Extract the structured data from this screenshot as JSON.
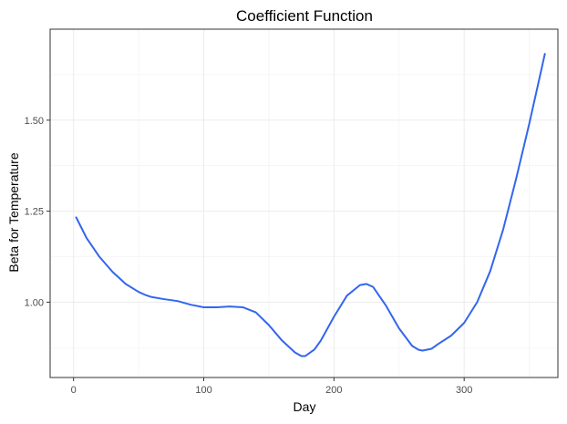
{
  "chart_data": {
    "type": "line",
    "title": "Coefficient Function",
    "xlabel": "Day",
    "ylabel": "Beta for Temperature",
    "xlim": [
      -18,
      372
    ],
    "ylim": [
      0.793,
      1.75
    ],
    "x_ticks": [
      {
        "value": 0,
        "label": "0"
      },
      {
        "value": 100,
        "label": "100"
      },
      {
        "value": 200,
        "label": "200"
      },
      {
        "value": 300,
        "label": "300"
      }
    ],
    "y_ticks": [
      {
        "value": 1.0,
        "label": "1.00"
      },
      {
        "value": 1.25,
        "label": "1.25"
      },
      {
        "value": 1.5,
        "label": "1.50"
      }
    ],
    "x_minor": [
      50,
      150,
      250,
      350
    ],
    "y_minor": [
      0.875,
      1.125,
      1.375,
      1.625
    ],
    "grid": true,
    "legend": "none",
    "line_color": "#3366ee",
    "series": [
      {
        "x": [
          2,
          10,
          20,
          30,
          40,
          50,
          55,
          60,
          70,
          80,
          90,
          100,
          110,
          120,
          130,
          140,
          150,
          160,
          170,
          175,
          178,
          185,
          190,
          200,
          210,
          220,
          225,
          230,
          240,
          250,
          260,
          265,
          268,
          275,
          280,
          290,
          300,
          310,
          320,
          330,
          340,
          350,
          355,
          360,
          362
        ],
        "y": [
          1.233,
          1.176,
          1.124,
          1.083,
          1.05,
          1.028,
          1.02,
          1.014,
          1.008,
          1.003,
          0.993,
          0.986,
          0.986,
          0.988,
          0.986,
          0.972,
          0.937,
          0.895,
          0.862,
          0.852,
          0.852,
          0.87,
          0.895,
          0.96,
          1.018,
          1.047,
          1.05,
          1.042,
          0.99,
          0.928,
          0.88,
          0.869,
          0.867,
          0.872,
          0.885,
          0.908,
          0.943,
          1.0,
          1.085,
          1.2,
          1.34,
          1.49,
          1.57,
          1.65,
          1.682
        ]
      }
    ]
  }
}
